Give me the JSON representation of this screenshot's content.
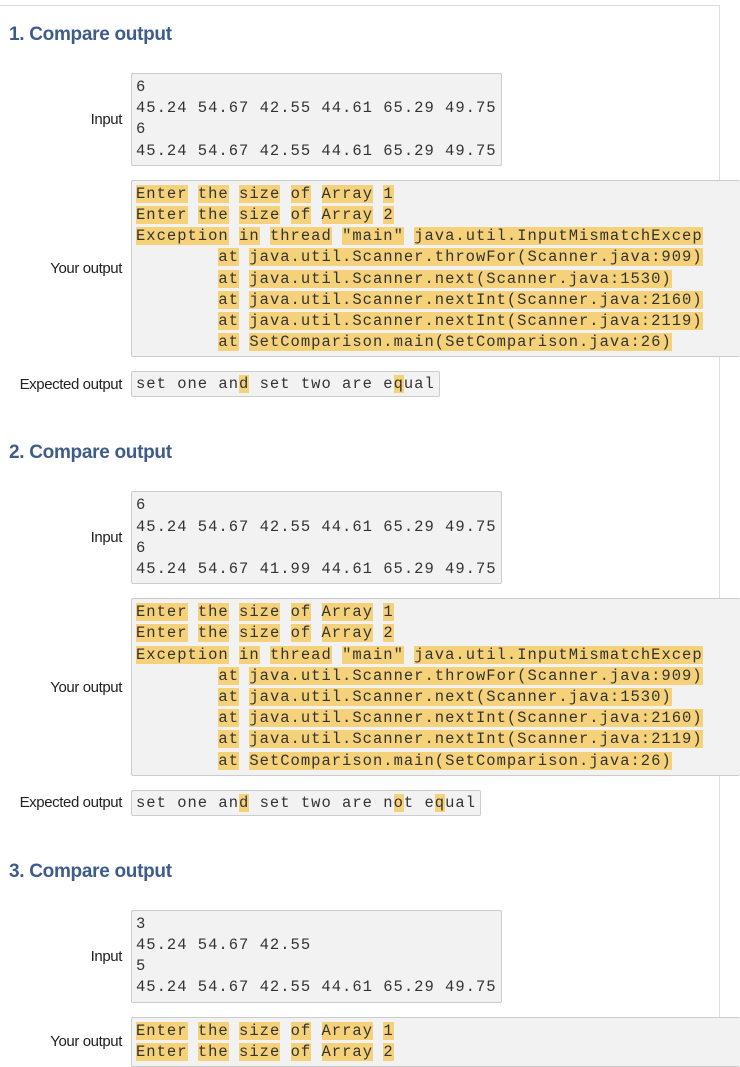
{
  "labels": {
    "input": "Input",
    "your_output": "Your output",
    "expected_output": "Expected output"
  },
  "colors": {
    "highlight": "#f5d27a",
    "heading": "#3e5c8a",
    "box_bg": "#f2f2f2"
  },
  "tests": [
    {
      "title": "1. Compare output",
      "input": [
        "6",
        "45.24 54.67 42.55 44.61 65.29 49.75",
        "6",
        "45.24 54.67 42.55 44.61 65.29 49.75"
      ],
      "output": [
        "Enter the size of Array 1",
        "Enter the size of Array 2",
        "Exception in thread \"main\" java.util.InputMismatchExcep",
        "        at java.util.Scanner.throwFor(Scanner.java:909)",
        "        at java.util.Scanner.next(Scanner.java:1530)",
        "        at java.util.Scanner.nextInt(Scanner.java:2160)",
        "        at java.util.Scanner.nextInt(Scanner.java:2119)",
        "        at SetComparison.main(SetComparison.java:26)"
      ],
      "expected": [
        [
          "set one an",
          false
        ],
        [
          "d",
          true
        ],
        [
          " set two are e",
          false
        ],
        [
          "q",
          true
        ],
        [
          "ual",
          false
        ]
      ]
    },
    {
      "title": "2. Compare output",
      "input": [
        "6",
        "45.24 54.67 42.55 44.61 65.29 49.75",
        "6",
        "45.24 54.67 41.99 44.61 65.29 49.75"
      ],
      "output": [
        "Enter the size of Array 1",
        "Enter the size of Array 2",
        "Exception in thread \"main\" java.util.InputMismatchExcep",
        "        at java.util.Scanner.throwFor(Scanner.java:909)",
        "        at java.util.Scanner.next(Scanner.java:1530)",
        "        at java.util.Scanner.nextInt(Scanner.java:2160)",
        "        at java.util.Scanner.nextInt(Scanner.java:2119)",
        "        at SetComparison.main(SetComparison.java:26)"
      ],
      "expected": [
        [
          "set one an",
          false
        ],
        [
          "d",
          true
        ],
        [
          " set two are n",
          false
        ],
        [
          "o",
          true
        ],
        [
          "t e",
          false
        ],
        [
          "q",
          true
        ],
        [
          "ual",
          false
        ]
      ]
    },
    {
      "title": "3. Compare output",
      "input": [
        "3",
        "45.24 54.67 42.55",
        "5",
        "45.24 54.67 42.55 44.61 65.29 49.75"
      ],
      "output": [
        "Enter the size of Array 1",
        "Enter the size of Array 2"
      ],
      "expected": []
    }
  ]
}
